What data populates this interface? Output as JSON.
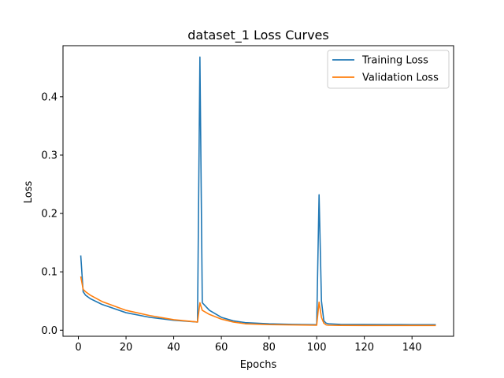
{
  "chart_data": {
    "type": "line",
    "title": "dataset_1 Loss Curves",
    "xlabel": "Epochs",
    "ylabel": "Loss",
    "xlim": [
      -6.45,
      157.45
    ],
    "ylim": [
      -0.0104,
      0.4875
    ],
    "xticks": [
      0,
      20,
      40,
      60,
      80,
      100,
      120,
      140
    ],
    "yticks": [
      0.0,
      0.1,
      0.2,
      0.3,
      0.4
    ],
    "ytick_labels": [
      "0.0",
      "0.1",
      "0.2",
      "0.3",
      "0.4"
    ],
    "grid": false,
    "legend_position": "top-right",
    "series": [
      {
        "name": "Training Loss",
        "color": "#1f77b4",
        "x": [
          1,
          2,
          3,
          5,
          10,
          20,
          30,
          40,
          50,
          51,
          52,
          55,
          60,
          65,
          70,
          80,
          90,
          100,
          101,
          102,
          103,
          104,
          105,
          110,
          120,
          130,
          140,
          150
        ],
        "y": [
          0.128,
          0.066,
          0.06,
          0.054,
          0.044,
          0.03,
          0.022,
          0.017,
          0.014,
          0.468,
          0.047,
          0.034,
          0.022,
          0.016,
          0.013,
          0.011,
          0.01,
          0.0095,
          0.232,
          0.05,
          0.016,
          0.012,
          0.011,
          0.01,
          0.0098,
          0.0096,
          0.0095,
          0.0094
        ]
      },
      {
        "name": "Validation Loss",
        "color": "#ff7f0e",
        "x": [
          1,
          2,
          3,
          5,
          10,
          20,
          30,
          40,
          50,
          51,
          52,
          55,
          60,
          65,
          70,
          80,
          90,
          100,
          101,
          102,
          103,
          104,
          105,
          110,
          120,
          130,
          140,
          150
        ],
        "y": [
          0.092,
          0.07,
          0.066,
          0.06,
          0.049,
          0.034,
          0.025,
          0.018,
          0.014,
          0.047,
          0.034,
          0.027,
          0.019,
          0.014,
          0.011,
          0.0095,
          0.009,
          0.0085,
          0.048,
          0.022,
          0.012,
          0.009,
          0.0085,
          0.0082,
          0.008,
          0.008,
          0.008,
          0.008
        ]
      }
    ]
  }
}
